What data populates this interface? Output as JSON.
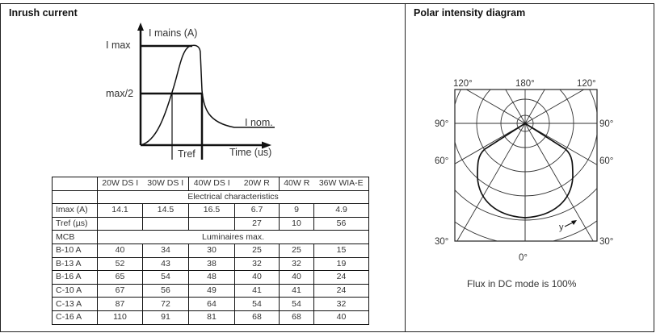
{
  "left_panel": {
    "title": "Inrush current",
    "graph": {
      "y_axis_label": "I mains (A)",
      "x_axis_label": "Time (us)",
      "imax_label": "I max",
      "half_label": "max/2",
      "inom_label": "I nom.",
      "tref_label": "Tref"
    },
    "table": {
      "columns": [
        "",
        "20W DS I",
        "30W DS I",
        "40W DS I",
        "20W R",
        "40W R",
        "36W WIA-E"
      ],
      "section_electrical": "Electrical characteristics",
      "imax_row": {
        "label": "Imax (A)",
        "values": [
          "14.1",
          "14.5",
          "16.5",
          "6.7",
          "9",
          "4.9"
        ]
      },
      "tref_row": {
        "label": "Tref (µs)",
        "values": [
          "",
          "",
          "",
          "27",
          "10",
          "56"
        ]
      },
      "mcb_row": {
        "label": "MCB",
        "section": "Luminaires max."
      },
      "mcb_rows": [
        {
          "label": "B-10 A",
          "values": [
            "40",
            "34",
            "30",
            "25",
            "25",
            "15"
          ]
        },
        {
          "label": "B-13 A",
          "values": [
            "52",
            "43",
            "38",
            "32",
            "32",
            "19"
          ]
        },
        {
          "label": "B-16 A",
          "values": [
            "65",
            "54",
            "48",
            "40",
            "40",
            "24"
          ]
        },
        {
          "label": "C-10 A",
          "values": [
            "67",
            "56",
            "49",
            "41",
            "41",
            "24"
          ]
        },
        {
          "label": "C-13 A",
          "values": [
            "87",
            "72",
            "64",
            "54",
            "54",
            "32"
          ]
        },
        {
          "label": "C-16 A",
          "values": [
            "110",
            "91",
            "81",
            "68",
            "68",
            "40"
          ]
        }
      ]
    }
  },
  "right_panel": {
    "title": "Polar intensity diagram",
    "angle_labels": {
      "top_left": "120°",
      "top_center": "180°",
      "top_right": "120°",
      "left_90": "90°",
      "right_90": "90°",
      "left_60": "60°",
      "right_60": "60°",
      "left_30": "30°",
      "right_30": "30°",
      "bottom_0": "0°"
    },
    "y_marker": "y",
    "caption": "Flux in DC mode is 100%"
  }
}
